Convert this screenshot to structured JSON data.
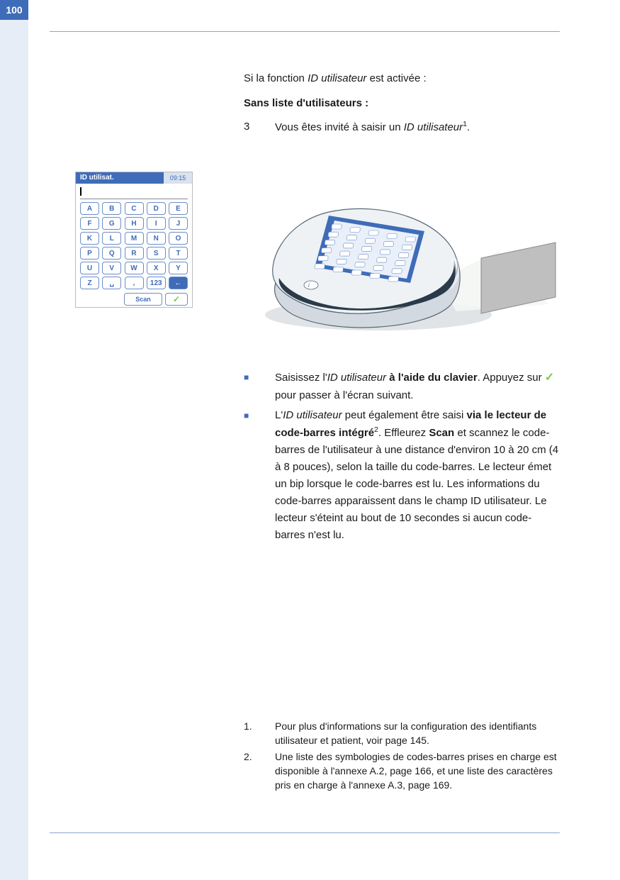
{
  "page_number": "100",
  "intro": {
    "prefix": "Si la fonction ",
    "italic": "ID utilisateur",
    "suffix": " est activée :"
  },
  "subhead": "Sans liste d'utilisateurs :",
  "step": {
    "num": "3",
    "prefix": "Vous êtes invité à saisir un ",
    "italic": "ID utilisateur",
    "sup": "1",
    "suffix": "."
  },
  "bullets": [
    {
      "parts": [
        {
          "t": "Saisissez l'"
        },
        {
          "t": "ID utilisateur",
          "italic": true
        },
        {
          "t": " "
        },
        {
          "t": "à l'aide du clavier",
          "bold": true
        },
        {
          "t": ". Appuyez sur "
        },
        {
          "check": true
        },
        {
          "t": " pour passer à l'écran suivant."
        }
      ]
    },
    {
      "parts": [
        {
          "t": "L'"
        },
        {
          "t": "ID utilisateur",
          "italic": true
        },
        {
          "t": " peut également être saisi "
        },
        {
          "t": "via le lecteur de code-barres intégré",
          "bold": true
        },
        {
          "sup": "2"
        },
        {
          "t": ". Effleurez "
        },
        {
          "t": "Scan",
          "bold": true
        },
        {
          "t": " et scannez le code-barres de l'utilisateur à une distance d'environ 10 à 20 cm (4 à 8 pouces), selon la taille du code-barres. Le lecteur émet un bip lorsque le code-barres est lu. Les informations du code-barres apparaissent dans le champ ID utilisateur. Le lecteur s'éteint au bout de 10 secondes si aucun code-barres n'est lu."
        }
      ]
    }
  ],
  "footnotes": [
    {
      "num": "1.",
      "text": "Pour plus d'informations sur la configuration des identifiants utilisateur et patient, voir page 145."
    },
    {
      "num": "2.",
      "text": "Une liste des symbologies de codes-barres prises en charge est disponible à l'annexe A.2, page 166, et une liste des caractères pris en charge à l'annexe A.3, page 169."
    }
  ],
  "keyboard": {
    "title": "ID utilisat.",
    "time": "09:15",
    "rows": [
      [
        "A",
        "B",
        "C",
        "D",
        "E"
      ],
      [
        "F",
        "G",
        "H",
        "I",
        "J"
      ],
      [
        "K",
        "L",
        "M",
        "N",
        "O"
      ],
      [
        "P",
        "Q",
        "R",
        "S",
        "T"
      ],
      [
        "U",
        "V",
        "W",
        "X",
        "Y"
      ],
      [
        "Z",
        "␣",
        ",",
        "123",
        "←"
      ]
    ],
    "scan": "Scan",
    "ok": "✓"
  },
  "device_illustration": {
    "body_fill_top": "#eef2f5",
    "body_fill_side": "#d2d9e0",
    "body_stroke": "#5a6876",
    "accent_band": "#2b3a4a",
    "screen_frame": "#3e6cb8",
    "screen_bg": "#eaf0f9",
    "key_stroke": "#6a8dc7",
    "key_fill": "#ffffff",
    "shadow": "#c8cdd2",
    "card_fill": "#bfbfbf",
    "card_edge": "#8a8a8a",
    "light_cone": "#f4f6f4"
  },
  "colors": {
    "side_band": "#e6edf7",
    "tab": "#3e6cb8",
    "rule": "#8aa5cc",
    "bullet": "#3e6cb8",
    "check": "#7ac943"
  }
}
